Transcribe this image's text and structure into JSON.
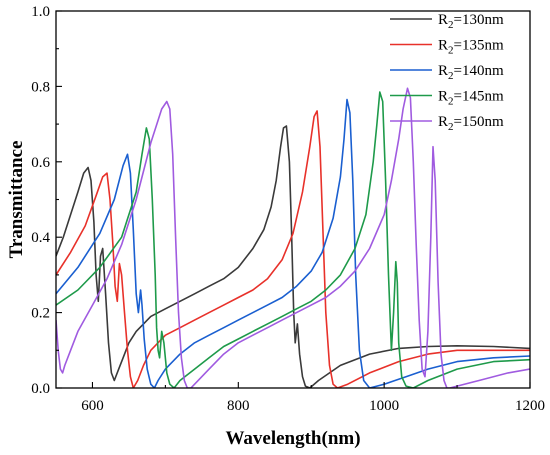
{
  "chart_data": {
    "type": "line",
    "title": "",
    "xlabel": "Wavelength(nm)",
    "ylabel": "Transmittance",
    "xlim": [
      550,
      1200
    ],
    "ylim": [
      0,
      1.0
    ],
    "x_ticks": [
      600,
      800,
      1000,
      1200
    ],
    "x_tick_labels": [
      "600",
      "800",
      "1000",
      "1200"
    ],
    "y_ticks": [
      0.0,
      0.2,
      0.4,
      0.6,
      0.8,
      1.0
    ],
    "y_tick_labels": [
      "0.0",
      "0.2",
      "0.4",
      "0.6",
      "0.8",
      "1.0"
    ],
    "grid": false,
    "legend_position": "top-right",
    "series": [
      {
        "name": "R2=130nm",
        "legend_main": "R",
        "legend_sub": "2",
        "legend_rest": "=130nm",
        "color": "#3a3a3a",
        "x": [
          550,
          560,
          570,
          580,
          588,
          594,
          598,
          602,
          605,
          608,
          611,
          614,
          618,
          622,
          626,
          630,
          636,
          642,
          650,
          660,
          670,
          680,
          700,
          720,
          740,
          760,
          780,
          800,
          820,
          835,
          845,
          852,
          858,
          862,
          866,
          870,
          873,
          876,
          878,
          881,
          884,
          888,
          892,
          898,
          910,
          940,
          980,
          1020,
          1060,
          1100,
          1150,
          1200
        ],
        "y": [
          0.35,
          0.4,
          0.46,
          0.52,
          0.57,
          0.585,
          0.55,
          0.44,
          0.3,
          0.23,
          0.35,
          0.37,
          0.25,
          0.12,
          0.04,
          0.02,
          0.05,
          0.08,
          0.12,
          0.15,
          0.17,
          0.19,
          0.21,
          0.23,
          0.25,
          0.27,
          0.29,
          0.32,
          0.37,
          0.42,
          0.48,
          0.55,
          0.64,
          0.69,
          0.695,
          0.6,
          0.42,
          0.2,
          0.12,
          0.17,
          0.09,
          0.03,
          0.005,
          0.0,
          0.02,
          0.06,
          0.09,
          0.105,
          0.11,
          0.112,
          0.11,
          0.105
        ]
      },
      {
        "name": "R2=135nm",
        "legend_main": "R",
        "legend_sub": "2",
        "legend_rest": "=135nm",
        "color": "#e8312a",
        "x": [
          550,
          570,
          590,
          605,
          614,
          620,
          624,
          628,
          631,
          634,
          637,
          640,
          644,
          648,
          652,
          656,
          662,
          670,
          680,
          700,
          720,
          740,
          760,
          780,
          800,
          820,
          840,
          860,
          875,
          888,
          898,
          904,
          908,
          912,
          916,
          920,
          925,
          930,
          936,
          950,
          980,
          1020,
          1060,
          1100,
          1150,
          1200
        ],
        "y": [
          0.3,
          0.36,
          0.43,
          0.51,
          0.56,
          0.57,
          0.5,
          0.38,
          0.27,
          0.23,
          0.33,
          0.3,
          0.2,
          0.1,
          0.03,
          0.0,
          0.02,
          0.06,
          0.1,
          0.14,
          0.16,
          0.18,
          0.2,
          0.22,
          0.24,
          0.26,
          0.29,
          0.34,
          0.41,
          0.52,
          0.64,
          0.72,
          0.735,
          0.64,
          0.42,
          0.2,
          0.06,
          0.01,
          0.0,
          0.01,
          0.04,
          0.07,
          0.09,
          0.1,
          0.1,
          0.1
        ]
      },
      {
        "name": "R2=140nm",
        "legend_main": "R",
        "legend_sub": "2",
        "legend_rest": "=140nm",
        "color": "#1a5fd0",
        "x": [
          550,
          580,
          610,
          630,
          642,
          648,
          652,
          656,
          660,
          663,
          666,
          668,
          671,
          675,
          680,
          685,
          690,
          700,
          720,
          740,
          760,
          780,
          800,
          820,
          840,
          860,
          880,
          900,
          915,
          930,
          940,
          945,
          949,
          953,
          957,
          961,
          966,
          972,
          980,
          1000,
          1030,
          1060,
          1100,
          1150,
          1200
        ],
        "y": [
          0.25,
          0.32,
          0.41,
          0.5,
          0.59,
          0.62,
          0.57,
          0.42,
          0.25,
          0.2,
          0.26,
          0.22,
          0.13,
          0.05,
          0.01,
          0.0,
          0.02,
          0.05,
          0.09,
          0.12,
          0.14,
          0.16,
          0.18,
          0.2,
          0.22,
          0.24,
          0.27,
          0.31,
          0.36,
          0.45,
          0.56,
          0.66,
          0.765,
          0.73,
          0.55,
          0.3,
          0.1,
          0.02,
          0.0,
          0.01,
          0.03,
          0.05,
          0.07,
          0.08,
          0.085
        ]
      },
      {
        "name": "R2=145nm",
        "legend_main": "R",
        "legend_sub": "2",
        "legend_rest": "=145nm",
        "color": "#1e9a4a",
        "x": [
          550,
          580,
          610,
          640,
          660,
          668,
          674,
          678,
          682,
          686,
          688,
          690,
          692,
          695,
          698,
          702,
          706,
          712,
          720,
          740,
          760,
          780,
          800,
          820,
          840,
          860,
          880,
          900,
          920,
          940,
          960,
          975,
          985,
          990,
          994,
          998,
          1002,
          1006,
          1010,
          1013,
          1016,
          1018,
          1020,
          1024,
          1030,
          1040,
          1060,
          1100,
          1150,
          1200
        ],
        "y": [
          0.22,
          0.26,
          0.32,
          0.4,
          0.52,
          0.62,
          0.69,
          0.66,
          0.5,
          0.3,
          0.16,
          0.1,
          0.08,
          0.15,
          0.12,
          0.04,
          0.01,
          0.0,
          0.02,
          0.05,
          0.08,
          0.11,
          0.13,
          0.15,
          0.17,
          0.19,
          0.21,
          0.23,
          0.26,
          0.3,
          0.37,
          0.46,
          0.6,
          0.7,
          0.785,
          0.76,
          0.55,
          0.3,
          0.1,
          0.2,
          0.335,
          0.28,
          0.12,
          0.03,
          0.005,
          0.0,
          0.02,
          0.05,
          0.07,
          0.075
        ]
      },
      {
        "name": "R2=150nm",
        "legend_main": "R",
        "legend_sub": "2",
        "legend_rest": "=150nm",
        "color": "#a05be0",
        "x": [
          550,
          553,
          556,
          559,
          562,
          570,
          580,
          600,
          620,
          640,
          660,
          680,
          695,
          702,
          706,
          710,
          714,
          718,
          722,
          726,
          730,
          735,
          740,
          750,
          760,
          780,
          800,
          820,
          840,
          860,
          880,
          900,
          920,
          940,
          960,
          980,
          1000,
          1010,
          1020,
          1026,
          1032,
          1036,
          1040,
          1044,
          1048,
          1052,
          1056,
          1060,
          1064,
          1067,
          1070,
          1074,
          1078,
          1082,
          1086,
          1090,
          1100,
          1130,
          1170,
          1200
        ],
        "y": [
          0.18,
          0.1,
          0.05,
          0.04,
          0.06,
          0.1,
          0.15,
          0.22,
          0.29,
          0.38,
          0.5,
          0.65,
          0.74,
          0.76,
          0.74,
          0.62,
          0.4,
          0.2,
          0.08,
          0.02,
          0.0,
          0.0,
          0.01,
          0.03,
          0.05,
          0.09,
          0.12,
          0.14,
          0.16,
          0.18,
          0.2,
          0.22,
          0.24,
          0.27,
          0.31,
          0.37,
          0.46,
          0.55,
          0.66,
          0.74,
          0.795,
          0.77,
          0.6,
          0.38,
          0.18,
          0.05,
          0.03,
          0.15,
          0.4,
          0.64,
          0.55,
          0.28,
          0.09,
          0.02,
          0.0,
          0.0,
          0.005,
          0.02,
          0.04,
          0.05
        ]
      }
    ]
  }
}
